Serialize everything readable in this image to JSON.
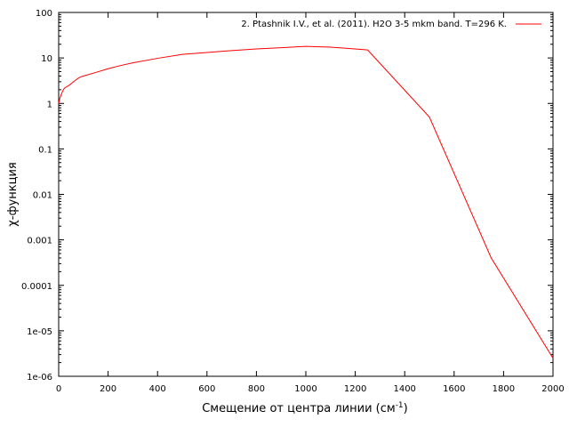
{
  "chart_data": {
    "type": "line",
    "title": "",
    "xlabel": "Смещение от центра линии (см",
    "xlabel_sup": "-1",
    "xlabel_tail": ")",
    "ylabel": "χ-функция",
    "xlim": [
      0,
      2000
    ],
    "ylim": [
      1e-06,
      100
    ],
    "y_scale": "log",
    "grid": false,
    "legend_position": "top-right",
    "x_ticks": [
      0,
      200,
      400,
      600,
      800,
      1000,
      1200,
      1400,
      1600,
      1800,
      2000
    ],
    "x_tick_labels": [
      "0",
      "200",
      "400",
      "600",
      "800",
      "1000",
      "1200",
      "1400",
      "1600",
      "1800",
      "2000"
    ],
    "y_ticks": [
      1e-06,
      1e-05,
      0.0001,
      0.001,
      0.01,
      0.1,
      1,
      10,
      100
    ],
    "y_tick_labels": [
      "1e-06",
      "1e-05",
      "0.0001",
      "0.001",
      "0.01",
      "0.1",
      "1",
      "10",
      "100"
    ],
    "series": [
      {
        "name": "2. Ptashnik I.V., et al. (2011). H2O 3-5 mkm band. T=296 K.",
        "color": "#ff0000",
        "x": [
          0,
          5,
          10,
          15,
          20,
          25,
          30,
          40,
          50,
          60,
          70,
          80,
          90,
          100,
          150,
          200,
          250,
          300,
          400,
          500,
          600,
          700,
          800,
          900,
          1000,
          1100,
          1250,
          1500,
          1750,
          2000
        ],
        "y": [
          1.0,
          1.3,
          1.55,
          1.8,
          2.05,
          2.2,
          2.3,
          2.45,
          2.7,
          3.0,
          3.3,
          3.6,
          3.85,
          4.0,
          4.8,
          5.8,
          6.8,
          7.8,
          9.8,
          12.0,
          13.2,
          14.5,
          15.8,
          16.8,
          18.0,
          17.3,
          15.0,
          0.5,
          0.0004,
          2.5e-06
        ]
      }
    ]
  }
}
